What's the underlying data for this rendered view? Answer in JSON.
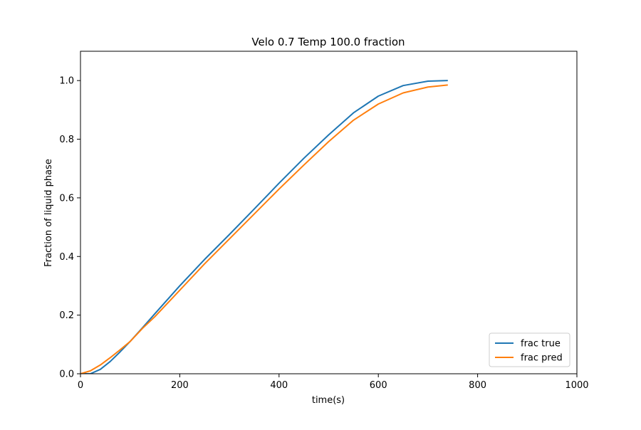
{
  "chart_data": {
    "type": "line",
    "title": "Velo 0.7 Temp 100.0 fraction",
    "xlabel": "time(s)",
    "ylabel": "Fraction of liquid phase",
    "xlim": [
      0,
      1000
    ],
    "ylim": [
      0,
      1.1
    ],
    "xticks": [
      0,
      200,
      400,
      600,
      800,
      1000
    ],
    "yticks": [
      0.0,
      0.2,
      0.4,
      0.6,
      0.8,
      1.0
    ],
    "xtick_labels": [
      "0",
      "200",
      "400",
      "600",
      "800",
      "1000"
    ],
    "ytick_labels": [
      "0.0",
      "0.2",
      "0.4",
      "0.6",
      "0.8",
      "1.0"
    ],
    "grid": false,
    "legend_position": "lower-right",
    "series": [
      {
        "name": "frac true",
        "color": "#1f77b4",
        "x": [
          0,
          20,
          40,
          60,
          80,
          100,
          125,
          150,
          200,
          250,
          300,
          350,
          400,
          450,
          500,
          550,
          600,
          650,
          700,
          740
        ],
        "y": [
          0.0,
          0.0,
          0.015,
          0.042,
          0.075,
          0.11,
          0.157,
          0.205,
          0.3,
          0.39,
          0.475,
          0.562,
          0.65,
          0.735,
          0.815,
          0.89,
          0.947,
          0.983,
          0.998,
          1.0
        ]
      },
      {
        "name": "frac pred",
        "color": "#ff7f0e",
        "x": [
          0,
          20,
          40,
          60,
          80,
          100,
          125,
          150,
          200,
          250,
          300,
          350,
          400,
          450,
          500,
          550,
          600,
          650,
          700,
          740
        ],
        "y": [
          0.0,
          0.01,
          0.03,
          0.055,
          0.082,
          0.11,
          0.155,
          0.195,
          0.285,
          0.375,
          0.46,
          0.545,
          0.63,
          0.712,
          0.792,
          0.865,
          0.92,
          0.958,
          0.978,
          0.985
        ]
      }
    ]
  }
}
